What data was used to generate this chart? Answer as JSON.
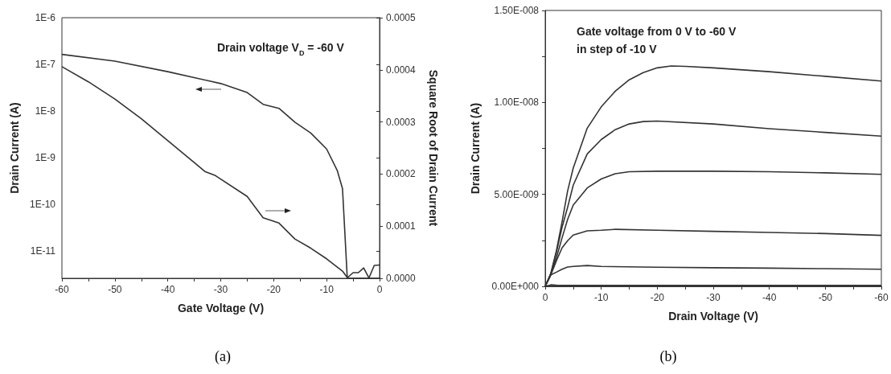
{
  "chart_data": [
    {
      "type": "line",
      "title": "(a)",
      "xlabel": "Gate Voltage (V)",
      "ylabel": "Drain Current (A)",
      "y2label": "Square Root of Drain Current",
      "log": "y",
      "annotations": [
        "Drain voltage V$_{D}$ = -60 V"
      ],
      "xlim": [
        -60,
        0
      ],
      "xticks": [
        -60,
        {
          "value": -55,
          "label": null
        },
        -50,
        {
          "value": -45,
          "label": null
        },
        -40,
        {
          "value": -35,
          "label": null
        },
        -30,
        {
          "value": -25,
          "label": null
        },
        -20,
        {
          "value": -15,
          "label": null
        },
        -10,
        {
          "value": -5,
          "label": null
        },
        0
      ],
      "ylim": [
        2.65e-12,
        1e-06
      ],
      "yticks": [
        {
          "value": 1e-11,
          "label": "1E-11"
        },
        {
          "value": 1e-10,
          "label": "1E-10"
        },
        {
          "value": 1e-09,
          "label": "1E-9"
        },
        {
          "value": 1e-08,
          "label": "1E-8"
        },
        {
          "value": 1e-07,
          "label": "1E-7"
        },
        {
          "value": 1e-06,
          "label": "1E-6"
        }
      ],
      "y2lim": [
        0,
        0.0005
      ],
      "y2ticks": [
        {
          "value": 0,
          "label": "0.0000"
        },
        {
          "value": 0.0001,
          "label": "0.0001"
        },
        {
          "value": 0.0002,
          "label": "0.0002"
        },
        {
          "value": 0.0003,
          "label": "0.0003"
        },
        {
          "value": 0.0004,
          "label": "0.0004"
        },
        {
          "value": 0.0005,
          "label": "0.0005"
        }
      ],
      "series": [
        {
          "color": "#333333",
          "x": [
            -60,
            -50,
            -40,
            -30,
            -25,
            -22,
            -19,
            -16,
            -13,
            -10,
            -8,
            -7,
            -6.1,
            -5,
            -4,
            -3,
            -2,
            -1,
            0
          ],
          "values": [
            1.64e-07,
            1.18e-07,
            7e-08,
            3.9e-08,
            2.5e-08,
            1.4e-08,
            1.15e-08,
            5.8e-09,
            3.4e-09,
            1.55e-09,
            5.4e-10,
            2.2e-10,
            2.7e-12,
            3.5e-12,
            3.5e-12,
            4.4e-12,
            2.7e-12,
            5e-12,
            5.1e-12
          ]
        },
        {
          "color": "#333333",
          "axis": "y2",
          "x": [
            -60,
            -55,
            -50,
            -45,
            -40,
            -35,
            -33,
            -31,
            -25,
            -22,
            -19,
            -16,
            -13,
            -10,
            -7,
            -6,
            -4,
            -2,
            0
          ],
          "values": [
            0.000406,
            0.000377,
            0.000344,
            0.000306,
            0.000264,
            0.000222,
            0.000205,
            0.000197,
            0.000157,
            0.000116,
            0.000106,
            7.54e-05,
            5.78e-05,
            3.74e-05,
            1.38e-05,
            0,
            0,
            0,
            0
          ]
        }
      ]
    },
    {
      "type": "line",
      "title": "(b)",
      "xlabel": "Drain Voltage (V)",
      "ylabel": "Drain Current (A)",
      "annotations": [
        "Gate voltage from 0 V to -60 V\nin step of -10 V"
      ],
      "xlim": [
        0,
        -60
      ],
      "xticks": [
        0,
        {
          "value": -5,
          "label": null
        },
        -10,
        {
          "value": -15,
          "label": null
        },
        -20,
        {
          "value": -25,
          "label": null
        },
        -30,
        {
          "value": -35,
          "label": null
        },
        -40,
        {
          "value": -45,
          "label": null
        },
        -50,
        {
          "value": -55,
          "label": null
        },
        -60
      ],
      "ylim": [
        0,
        1.5e-08
      ],
      "yticks": [
        {
          "value": 0,
          "label": "0.00E+000"
        },
        {
          "value": 2.5e-09,
          "label": null
        },
        {
          "value": 5e-09,
          "label": "5.00E-009"
        },
        {
          "value": 7.5e-09,
          "label": null
        },
        {
          "value": 1e-08,
          "label": "1.00E-008"
        },
        {
          "value": 1.25e-08,
          "label": null
        },
        {
          "value": 1.5e-08,
          "label": "1.50E-008"
        }
      ],
      "series": [
        {
          "color": "#333333",
          "x": [
            0,
            -1,
            -2,
            -3,
            -4,
            -5,
            -7.5,
            -10,
            -12.5,
            -15,
            -17.5,
            -20,
            -22.5,
            -25,
            -30,
            -40,
            -50,
            -60
          ],
          "values": [
            0,
            7e-10,
            1.94e-09,
            3.49e-09,
            5.19e-09,
            6.43e-09,
            8.6e-09,
            9.76e-09,
            1.061e-08,
            1.123e-08,
            1.162e-08,
            1.188e-08,
            1.198e-08,
            1.196e-08,
            1.188e-08,
            1.167e-08,
            1.142e-08,
            1.116e-08
          ]
        },
        {
          "color": "#333333",
          "x": [
            0,
            -1,
            -2,
            -3,
            -4,
            -5,
            -7.5,
            -10,
            -12.5,
            -15,
            -17.5,
            -20,
            -30,
            -40,
            -50,
            -60
          ],
          "values": [
            0,
            6.9e-10,
            1.86e-09,
            3.2e-09,
            4.3e-09,
            5.5e-09,
            7.2e-09,
            7.98e-09,
            8.52e-09,
            8.83e-09,
            8.96e-09,
            8.99e-09,
            8.83e-09,
            8.57e-09,
            8.37e-09,
            8.17e-09
          ]
        },
        {
          "color": "#333333",
          "x": [
            0,
            -1,
            -2,
            -3,
            -4,
            -5,
            -7.5,
            -10,
            -12.5,
            -15,
            -20,
            -30,
            -40,
            -50,
            -60
          ],
          "values": [
            0,
            6.8e-10,
            1.55e-09,
            2.63e-09,
            3.64e-09,
            4.42e-09,
            5.35e-09,
            5.84e-09,
            6.12e-09,
            6.23e-09,
            6.26e-09,
            6.26e-09,
            6.23e-09,
            6.17e-09,
            6.09e-09
          ]
        },
        {
          "color": "#333333",
          "x": [
            0,
            -1,
            -2,
            -3,
            -4,
            -5,
            -7.5,
            -10,
            -12.5,
            -20,
            -30,
            -40,
            -50,
            -60
          ],
          "values": [
            0,
            6.2e-10,
            1.39e-09,
            2.09e-09,
            2.48e-09,
            2.79e-09,
            3.02e-09,
            3.05e-09,
            3.1e-09,
            3.05e-09,
            2.99e-09,
            2.93e-09,
            2.87e-09,
            2.77e-09
          ]
        },
        {
          "color": "#333333",
          "x": [
            0,
            -1,
            -2,
            -3,
            -4,
            -5,
            -7.5,
            -10,
            -20,
            -30,
            -40,
            -50,
            -60
          ],
          "values": [
            0,
            6.2e-10,
            7.7e-10,
            9.3e-10,
            1.05e-09,
            1.08e-09,
            1.13e-09,
            1.08e-09,
            1.04e-09,
            1.01e-09,
            9.9e-10,
            9.6e-10,
            9.3e-10
          ]
        },
        {
          "color": "#333333",
          "x": [
            0,
            -1,
            -2,
            -5,
            -10,
            -20,
            -30,
            -40,
            -50,
            -60
          ],
          "values": [
            0,
            8e-11,
            6e-11,
            5e-11,
            5e-11,
            5e-11,
            5e-11,
            5e-11,
            5e-11,
            5e-11
          ]
        },
        {
          "color": "#333333",
          "x": [
            0,
            -10,
            -20,
            -30,
            -40,
            -50,
            -60
          ],
          "values": [
            0,
            0,
            0,
            0,
            0,
            0,
            0
          ]
        }
      ]
    }
  ]
}
